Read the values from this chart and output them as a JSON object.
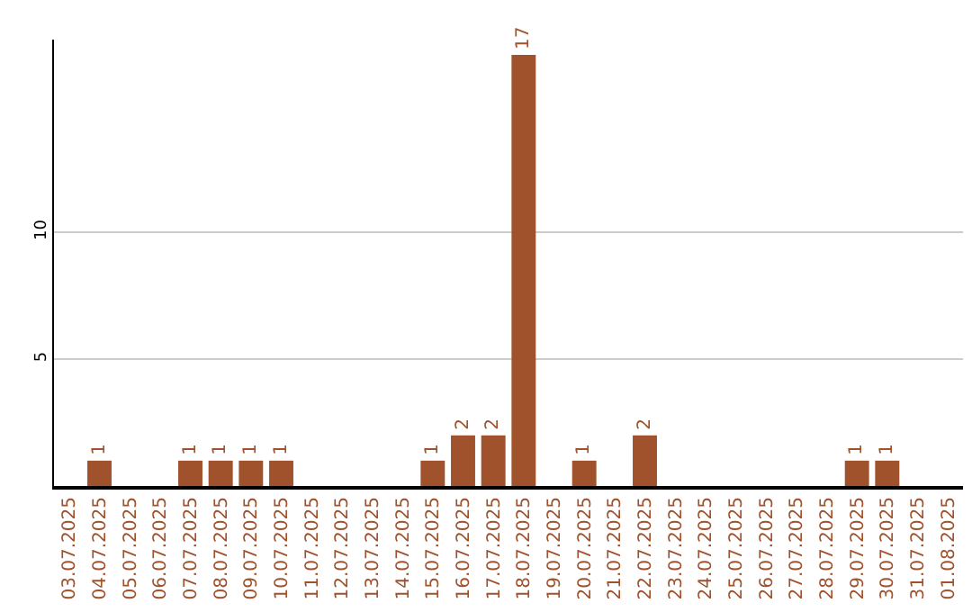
{
  "chart_data": {
    "type": "bar",
    "categories": [
      "03.07.2025",
      "04.07.2025",
      "05.07.2025",
      "06.07.2025",
      "07.07.2025",
      "08.07.2025",
      "09.07.2025",
      "10.07.2025",
      "11.07.2025",
      "12.07.2025",
      "13.07.2025",
      "14.07.2025",
      "15.07.2025",
      "16.07.2025",
      "17.07.2025",
      "18.07.2025",
      "19.07.2025",
      "20.07.2025",
      "21.07.2025",
      "22.07.2025",
      "23.07.2025",
      "24.07.2025",
      "25.07.2025",
      "26.07.2025",
      "27.07.2025",
      "28.07.2025",
      "29.07.2025",
      "30.07.2025",
      "31.07.2025",
      "01.08.2025"
    ],
    "values": [
      0,
      1,
      0,
      0,
      1,
      1,
      1,
      1,
      0,
      0,
      0,
      0,
      1,
      2,
      2,
      17,
      0,
      1,
      0,
      2,
      0,
      0,
      0,
      0,
      0,
      0,
      1,
      1,
      0,
      0
    ],
    "value_labels": [
      null,
      "1",
      null,
      null,
      "1",
      "1",
      "1",
      "1",
      null,
      null,
      null,
      null,
      "1",
      "2",
      "2",
      "17",
      null,
      "1",
      null,
      "2",
      null,
      null,
      null,
      null,
      null,
      null,
      "1",
      "1",
      null,
      null
    ],
    "color": "#a0522d",
    "ylim": [
      0,
      17.6
    ],
    "yticks": [
      5,
      10
    ],
    "grid": "y"
  }
}
